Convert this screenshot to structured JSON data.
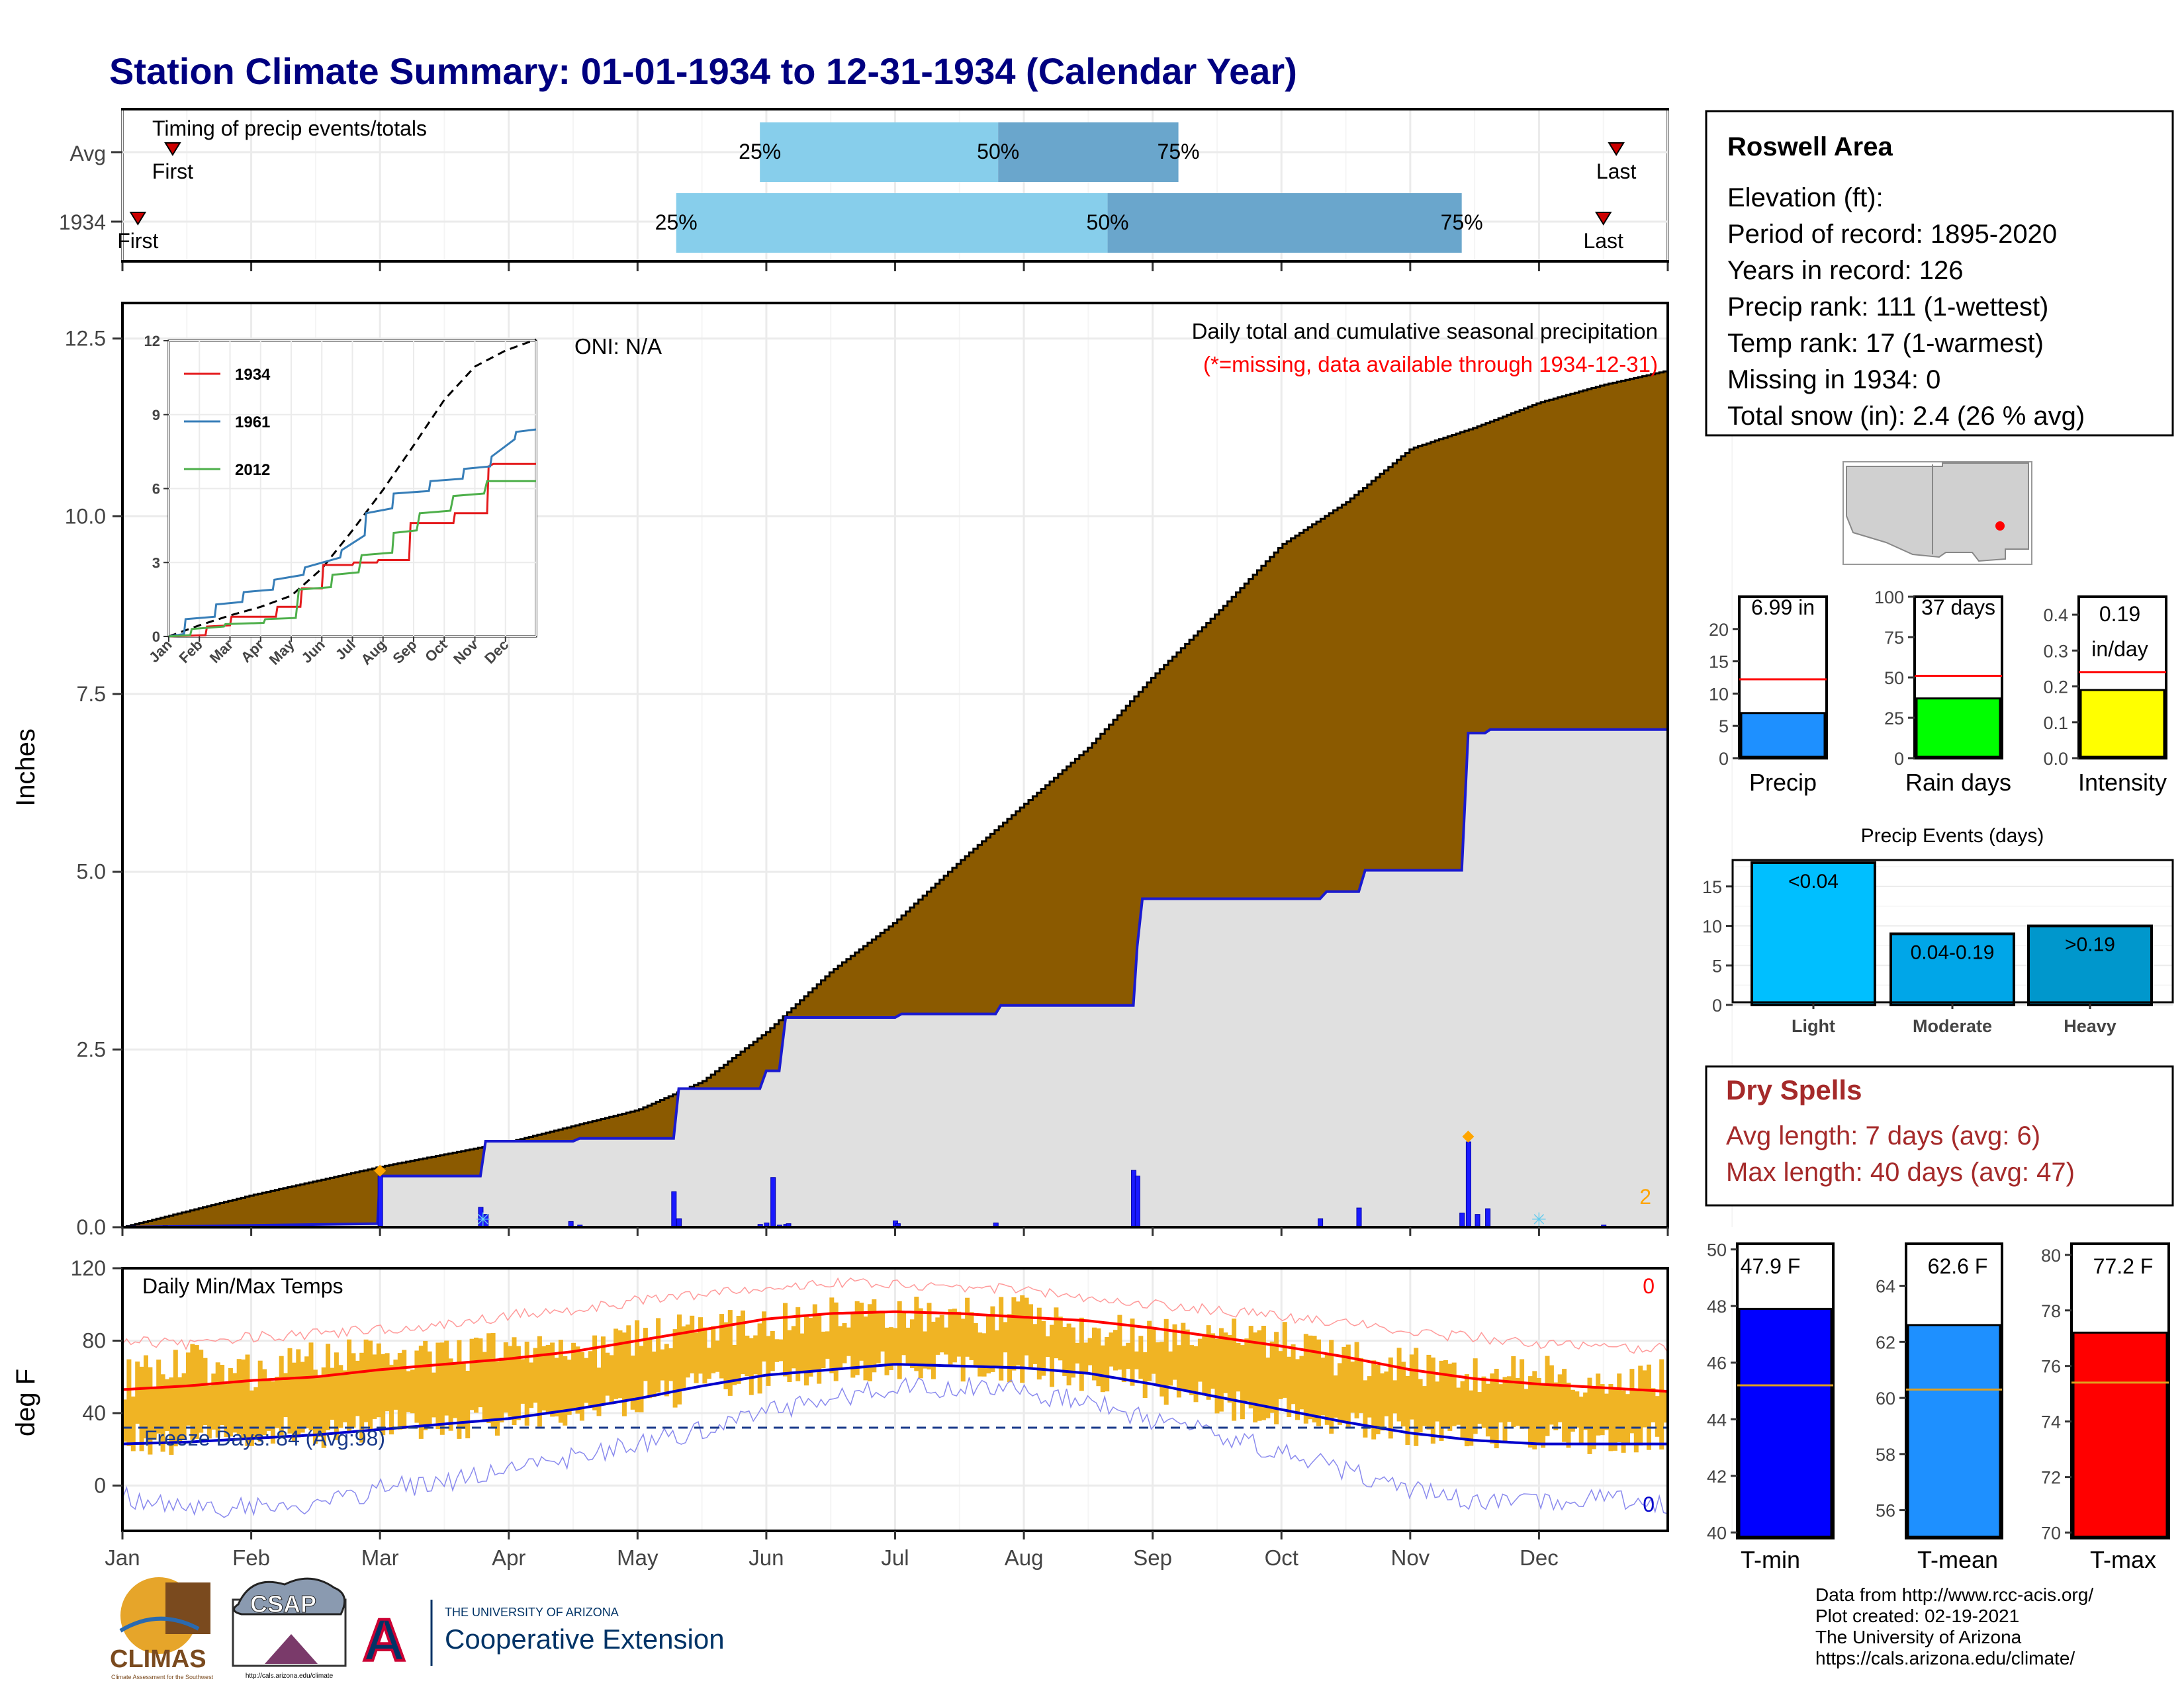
{
  "page_title": "Station Climate Summary: 01-01-1934 to 12-31-1934 (Calendar Year)",
  "colors": {
    "title": "#000080",
    "cumulative_fill": "#8B5A00",
    "observed_fill": "#e0e0e0",
    "observed_line": "#1a1ad0",
    "q_light": "#87CEEB",
    "q_dark": "#6aa6cc",
    "temp_bar": "#f0b424",
    "tmax_line": "#ff0000",
    "tmin_line": "#0000cc",
    "precip_bar": "#1e90ff",
    "raindays_bar": "#00ff00",
    "intensity_bar": "#ffff00",
    "events_light": "#00bfff",
    "events_moderate": "#00a6e8",
    "events_heavy": "#0097cc",
    "tmin_bar": "#0000ff",
    "tmean_bar": "#1e90ff",
    "tmax_bar": "#ff0000",
    "drought_title": "#a52a2a",
    "map_dot": "#ff0000"
  },
  "chart_data": [
    {
      "id": "timing",
      "type": "bar",
      "title": "Timing of precip events/totals",
      "x_range_months": [
        0,
        12
      ],
      "rows": [
        {
          "label": "Avg",
          "first_month": 0.39,
          "q25": 4.95,
          "q50": 6.8,
          "q75": 8.2,
          "last_month": 11.6,
          "first_label": "First",
          "last_label": "Last",
          "q25_label": "25%",
          "q50_label": "50%",
          "q75_label": "75%"
        },
        {
          "label": "1934",
          "first_month": 0.12,
          "q25": 4.3,
          "q50": 7.65,
          "q75": 10.4,
          "last_month": 11.5,
          "first_label": "First",
          "last_label": "Last",
          "q25_label": "25%",
          "q50_label": "50%",
          "q75_label": "75%"
        }
      ]
    },
    {
      "id": "cumulative",
      "type": "area",
      "title": "Daily total and cumulative seasonal precipitation",
      "subtitle": "(*=missing, data available through 1934-12-31)",
      "annotation": "ONI: N/A",
      "ylabel": "Inches",
      "ylim": [
        0,
        13
      ],
      "yticks": [
        "0.0",
        "2.5",
        "5.0",
        "7.5",
        "10.0",
        "12.5"
      ],
      "x_unit": "month",
      "average_cumulative": {
        "x": [
          0,
          1,
          2,
          3,
          4,
          4.5,
          5,
          5.5,
          6,
          6.5,
          7,
          7.5,
          8,
          8.5,
          9,
          9.5,
          10,
          10.5,
          11,
          11.5,
          12
        ],
        "y": [
          0,
          0.45,
          0.85,
          1.2,
          1.65,
          2.05,
          2.75,
          3.6,
          4.3,
          5.15,
          5.95,
          6.75,
          7.75,
          8.65,
          9.6,
          10.2,
          10.95,
          11.25,
          11.6,
          11.85,
          12.05
        ]
      },
      "observed_cumulative": {
        "x": [
          0,
          1.98,
          2.0,
          2.78,
          2.82,
          3.5,
          3.55,
          4.28,
          4.32,
          4.95,
          5.0,
          5.1,
          5.15,
          6.0,
          6.05,
          6.78,
          6.82,
          7.85,
          7.88,
          7.92,
          9.3,
          9.35,
          9.6,
          9.65,
          10.4,
          10.45,
          10.58,
          10.62,
          12
        ],
        "y": [
          0,
          0.05,
          0.72,
          0.72,
          1.21,
          1.21,
          1.25,
          1.25,
          1.95,
          1.95,
          2.2,
          2.2,
          2.95,
          2.95,
          3.0,
          3.0,
          3.12,
          3.12,
          3.95,
          4.62,
          4.62,
          4.72,
          4.72,
          5.02,
          5.02,
          6.95,
          6.95,
          7.0,
          7.0
        ]
      },
      "daily": {
        "x_month": [
          0.33,
          2.0,
          2.78,
          2.82,
          3.48,
          3.55,
          4.28,
          4.32,
          4.95,
          5.0,
          5.05,
          5.1,
          5.15,
          5.17,
          6.0,
          6.02,
          6.78,
          7.85,
          7.88,
          9.3,
          9.6,
          10.4,
          10.45,
          10.52,
          10.6,
          11.5
        ],
        "values": [
          0.02,
          0.72,
          0.28,
          0.18,
          0.08,
          0.03,
          0.5,
          0.12,
          0.04,
          0.06,
          0.7,
          0.03,
          0.04,
          0.05,
          0.09,
          0.05,
          0.06,
          0.8,
          0.72,
          0.12,
          0.27,
          0.2,
          1.2,
          0.18,
          0.26,
          0.03
        ]
      },
      "missing_markers_month": [
        2.0,
        10.45
      ],
      "snow_markers_month": [
        2.8,
        11.0
      ],
      "right_count_label": "2"
    },
    {
      "id": "inset_cumulative",
      "type": "line",
      "ylim": [
        0,
        12
      ],
      "yticks": [
        "0",
        "3",
        "6",
        "9",
        "12"
      ],
      "categories": [
        "Jan",
        "Feb",
        "Mar",
        "Apr",
        "May",
        "Jun",
        "Jul",
        "Aug",
        "Sep",
        "Oct",
        "Nov",
        "Dec"
      ],
      "series": [
        {
          "name": "",
          "style": "dashed",
          "color": "#000000",
          "x": [
            0,
            1,
            2,
            3,
            4,
            5,
            6,
            7,
            8,
            9,
            10,
            11,
            12
          ],
          "y": [
            0,
            0.45,
            0.85,
            1.2,
            1.65,
            2.75,
            4.3,
            5.95,
            7.75,
            9.6,
            10.95,
            11.6,
            12.05
          ]
        },
        {
          "name": "1934",
          "color": "#e41a1c",
          "x": [
            0,
            1.2,
            1.25,
            2.0,
            2.05,
            3.5,
            3.55,
            4.3,
            4.35,
            5.0,
            5.05,
            6.0,
            6.05,
            6.8,
            6.85,
            7.85,
            7.9,
            9.3,
            9.35,
            10.4,
            10.45,
            10.6,
            12
          ],
          "y": [
            0,
            0.05,
            0.4,
            0.45,
            0.8,
            0.8,
            1.2,
            1.2,
            1.95,
            1.95,
            2.9,
            2.9,
            3.0,
            3.0,
            3.1,
            3.1,
            4.6,
            4.6,
            5.0,
            5.0,
            6.9,
            7.0,
            7.0
          ]
        },
        {
          "name": "1961",
          "color": "#377eb8",
          "x": [
            0,
            0.5,
            0.55,
            1.5,
            1.55,
            2.4,
            2.45,
            3.4,
            3.45,
            4.4,
            4.45,
            5.6,
            5.65,
            6.4,
            6.45,
            7.3,
            7.35,
            8.5,
            8.55,
            9.6,
            9.65,
            10.5,
            10.55,
            11.3,
            11.35,
            12
          ],
          "y": [
            0,
            0.1,
            0.7,
            0.8,
            1.3,
            1.4,
            1.8,
            1.9,
            2.3,
            2.5,
            2.8,
            3.2,
            3.5,
            4.1,
            5.0,
            5.2,
            5.8,
            5.9,
            6.3,
            6.4,
            6.8,
            6.9,
            7.3,
            8.0,
            8.3,
            8.4
          ]
        },
        {
          "name": "2012",
          "color": "#4daf4a",
          "x": [
            0,
            0.7,
            0.75,
            1.8,
            1.85,
            3.1,
            3.15,
            4.15,
            4.25,
            5.3,
            5.35,
            6.2,
            6.3,
            7.3,
            7.35,
            8.1,
            8.2,
            9.2,
            9.3,
            10.3,
            10.4,
            12
          ],
          "y": [
            0,
            0.05,
            0.3,
            0.4,
            0.5,
            0.55,
            0.7,
            0.75,
            1.9,
            2.0,
            2.5,
            2.6,
            3.3,
            3.4,
            4.2,
            4.3,
            5.0,
            5.1,
            5.7,
            5.8,
            6.3,
            6.3
          ]
        }
      ]
    },
    {
      "id": "temps",
      "type": "line",
      "title": "Daily Min/Max Temps",
      "ylabel": "deg F",
      "ylim": [
        -25,
        120
      ],
      "yticks": [
        "0",
        "40",
        "80",
        "120"
      ],
      "freeze_line": 32,
      "freeze_label": "Freeze Days: 84 (Avg:98)",
      "count_top": "0",
      "count_bottom": "0",
      "x": [
        0,
        0.5,
        1,
        1.5,
        2,
        2.5,
        3,
        3.5,
        4,
        4.5,
        5,
        5.5,
        6,
        6.5,
        7,
        7.5,
        8,
        8.5,
        9,
        9.5,
        10,
        10.5,
        11,
        11.5,
        12
      ],
      "avg_tmax": [
        53,
        55,
        58,
        60,
        64,
        67,
        70,
        74,
        80,
        86,
        92,
        95,
        96,
        95,
        93,
        91,
        87,
        82,
        77,
        71,
        64,
        59,
        56,
        54,
        52
      ],
      "avg_tmin": [
        23,
        24,
        26,
        28,
        31,
        34,
        37,
        42,
        48,
        55,
        61,
        64,
        67,
        66,
        65,
        62,
        56,
        49,
        42,
        35,
        29,
        25,
        23,
        23,
        23
      ],
      "record_tmax": [
        80,
        78,
        82,
        84,
        86,
        88,
        94,
        97,
        102,
        106,
        110,
        112,
        111,
        110,
        108,
        104,
        100,
        97,
        93,
        90,
        84,
        82,
        78,
        76,
        76
      ],
      "record_tmin": [
        -6,
        -14,
        -12,
        -10,
        -2,
        2,
        8,
        16,
        24,
        30,
        40,
        48,
        55,
        54,
        52,
        46,
        36,
        28,
        18,
        8,
        -2,
        -8,
        -10,
        -6,
        -10
      ],
      "obs_tmax": [
        58,
        68,
        62,
        70,
        75,
        70,
        78,
        72,
        82,
        85,
        90,
        96,
        97,
        94,
        96,
        88,
        84,
        82,
        80,
        70,
        66,
        60,
        64,
        56,
        60
      ],
      "obs_tmin": [
        27,
        25,
        30,
        28,
        34,
        30,
        38,
        40,
        48,
        54,
        60,
        62,
        66,
        66,
        64,
        60,
        55,
        46,
        40,
        36,
        30,
        28,
        26,
        26,
        28
      ]
    },
    {
      "id": "precip_total",
      "type": "bar",
      "xlabel": "Precip",
      "value_label": "6.99 in",
      "value": 6.99,
      "average": 12.2,
      "ylim": [
        0,
        25
      ],
      "yticks": [
        "0",
        "5",
        "10",
        "15",
        "20"
      ]
    },
    {
      "id": "rain_days",
      "type": "bar",
      "xlabel": "Rain days",
      "value_label": "37 days",
      "value": 37,
      "average": 51,
      "ylim": [
        0,
        100
      ],
      "yticks": [
        "0",
        "25",
        "50",
        "75",
        "100"
      ]
    },
    {
      "id": "intensity",
      "type": "bar",
      "xlabel": "Intensity",
      "value_label_1": "0.19",
      "value_label_2": "in/day",
      "value": 0.19,
      "average": 0.24,
      "ylim": [
        0,
        0.45
      ],
      "yticks": [
        "0.0",
        "0.1",
        "0.2",
        "0.3",
        "0.4"
      ]
    },
    {
      "id": "events",
      "type": "bar",
      "title": "Precip Events (days)",
      "categories": [
        "Light",
        "Moderate",
        "Heavy"
      ],
      "values": [
        18,
        9,
        10
      ],
      "labels": [
        "<0.04",
        "0.04-0.19",
        ">0.19"
      ],
      "ylim": [
        0,
        18
      ],
      "yticks": [
        "0",
        "5",
        "10",
        "15"
      ]
    },
    {
      "id": "tmin_bar",
      "type": "bar",
      "xlabel": "T-min",
      "value_label": "47.9 F",
      "value": 47.9,
      "average": 45.2,
      "ylim": [
        39.8,
        50.2
      ],
      "yticks": [
        "40",
        "42",
        "44",
        "46",
        "48",
        "50"
      ]
    },
    {
      "id": "tmean_bar",
      "type": "bar",
      "xlabel": "T-mean",
      "value_label": "62.6 F",
      "value": 62.6,
      "average": 60.3,
      "ylim": [
        55,
        65.5
      ],
      "yticks": [
        "56",
        "58",
        "60",
        "62",
        "64"
      ]
    },
    {
      "id": "tmax_bar",
      "type": "bar",
      "xlabel": "T-max",
      "value_label": "77.2 F",
      "value": 77.2,
      "average": 75.4,
      "ylim": [
        69.8,
        80.4
      ],
      "yticks": [
        "70",
        "72",
        "74",
        "76",
        "78",
        "80"
      ]
    }
  ],
  "months": [
    "Jan",
    "Feb",
    "Mar",
    "Apr",
    "May",
    "Jun",
    "Jul",
    "Aug",
    "Sep",
    "Oct",
    "Nov",
    "Dec"
  ],
  "info": {
    "station": "Roswell Area",
    "elevation": "Elevation (ft):",
    "period": "Period of record: 1895-2020",
    "years": "Years in record: 126",
    "precip_rank": "Precip rank: 111 (1-wettest)",
    "temp_rank": "Temp rank: 17 (1-warmest)",
    "missing": "Missing in 1934: 0",
    "snow": "Total snow (in): 2.4 (26 % avg)"
  },
  "dry_spells": {
    "title": "Dry Spells",
    "avg_length": "Avg length: 7 days (avg: 6)",
    "max_length": "Max length: 40 days (avg: 47)"
  },
  "credits": {
    "line1": "Data from http://www.rcc-acis.org/",
    "line2": "Plot created: 02-19-2021",
    "line3": "The University of Arizona",
    "line4": "https://cals.arizona.edu/climate/"
  },
  "logos": {
    "climas": "CLIMAS",
    "climas_sub": "Climate Assessment for the Southwest",
    "csap": "CSAP",
    "csap_url": "http://cals.arizona.edu/climate",
    "ua_letter": "A",
    "ua_small": "THE UNIVERSITY OF ARIZONA",
    "ua_ext": "Cooperative Extension"
  }
}
